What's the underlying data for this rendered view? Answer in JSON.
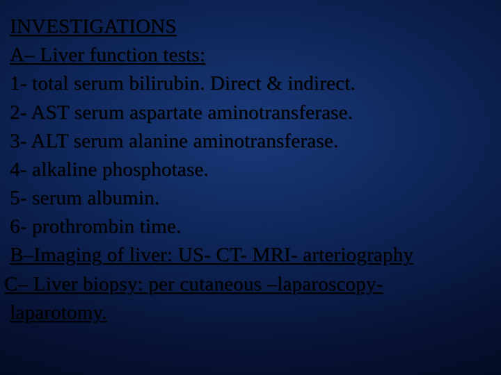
{
  "colors": {
    "text": "#000000",
    "bg_center": "#1a3a7a",
    "bg_mid": "#0e2456",
    "bg_outer": "#061030",
    "bg_edge": "#020615"
  },
  "typography": {
    "font_family": "Garamond / Georgia serif",
    "font_size_pt": 22,
    "line_height": 1.42,
    "title_underlined": true,
    "section_underlined": true
  },
  "slide": {
    "title": "INVESTIGATIONS",
    "section_a": "A– Liver function tests:",
    "item1": "1- total serum bilirubin. Direct & indirect.",
    "item2": "2- AST serum aspartate aminotransferase.",
    "item3": "3- ALT serum alanine aminotransferase.",
    "item4": "4- alkaline phosphotase.",
    "item5": "5- serum albumin.",
    "item6": "6- prothrombin time.",
    "section_b": "B–Imaging of liver: US- CT- MRI- arteriography",
    "section_c_l1": "C– Liver biopsy: per cutaneous –laparoscopy-",
    "section_c_l2": "laparotomy."
  }
}
